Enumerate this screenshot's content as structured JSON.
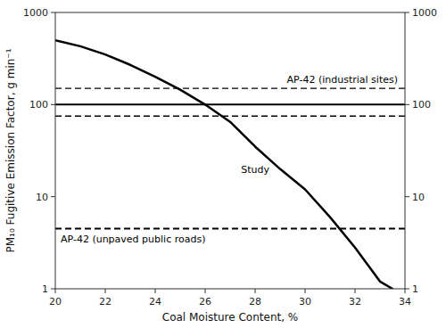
{
  "chart_data": {
    "type": "line",
    "log": "y",
    "xlabel": "Coal Moisture Content, %",
    "ylabel": "PM₁₀ Fugitive Emission Factor, g min⁻¹",
    "xlim": [
      20,
      34
    ],
    "ylim": [
      1,
      1000
    ],
    "xticks": [
      20,
      22,
      24,
      26,
      28,
      30,
      32,
      34
    ],
    "yticks": [
      1,
      10,
      100,
      1000
    ],
    "y2lim": [
      1,
      1000
    ],
    "y2ticks": [
      1,
      10,
      100,
      1000
    ],
    "grid": false,
    "color": "black",
    "series": [
      {
        "name": "Study",
        "x": [
          20,
          21,
          22,
          23,
          24,
          25,
          26,
          27,
          28,
          29,
          30,
          31,
          32,
          33,
          33.5
        ],
        "values": [
          500,
          430,
          350,
          270,
          200,
          145,
          100,
          65,
          35,
          20,
          12,
          6,
          2.8,
          1.2,
          1.0
        ],
        "line_style": "solid"
      }
    ],
    "hlines": [
      {
        "name": "AP-42 (industrial sites)",
        "value": 100,
        "lower": 75,
        "upper": 150,
        "line_style": "solid"
      },
      {
        "name": "AP-42 (unpaved public roads)",
        "value": 4.5,
        "line_style": "dashed"
      }
    ]
  }
}
